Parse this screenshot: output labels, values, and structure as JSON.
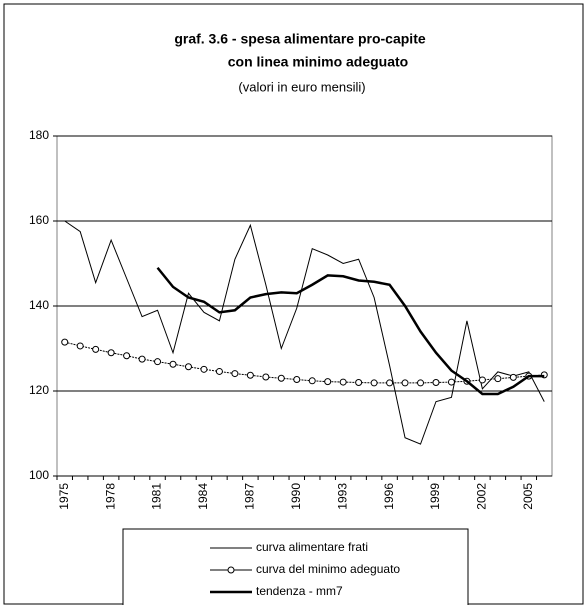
{
  "chart_data": {
    "type": "line",
    "title": [
      "graf. 3.6 - spesa alimentare pro-capite",
      "con linea minimo adeguato"
    ],
    "subtitle": "(valori in euro mensili)",
    "categories": [
      "1975",
      null,
      null,
      "1978",
      null,
      null,
      "1981",
      null,
      null,
      "1984",
      null,
      null,
      "1987",
      null,
      null,
      "1990",
      null,
      null,
      "1993",
      null,
      null,
      "1996",
      null,
      null,
      "1999",
      null,
      null,
      "2002",
      null,
      null,
      "2005",
      null
    ],
    "series": [
      {
        "name": "curva alimentare frati",
        "color": "#000000",
        "values": [
          160,
          157.5,
          145.5,
          155.5,
          146.5,
          137.5,
          139,
          129,
          143,
          138.5,
          136.5,
          151,
          159,
          145,
          130,
          139.5,
          153.5,
          152,
          150,
          151,
          142,
          126,
          109,
          107.5,
          117.5,
          118.5,
          136.5,
          120.5,
          124.5,
          123.5,
          124.5,
          117.5
        ]
      },
      {
        "name": "curva del minimo adeguato",
        "color": "#000000",
        "marker": "circle",
        "values": [
          131.5,
          130.6,
          129.8,
          129,
          128.3,
          127.5,
          126.9,
          126.3,
          125.7,
          125.1,
          124.6,
          124.1,
          123.7,
          123.3,
          123,
          122.7,
          122.4,
          122.2,
          122.1,
          122,
          121.9,
          121.9,
          121.9,
          121.9,
          122,
          122.1,
          122.3,
          122.6,
          122.9,
          123.2,
          123.5,
          123.8
        ]
      },
      {
        "name": "tendenza - mm7",
        "color": "#000000",
        "values": [
          null,
          null,
          null,
          null,
          null,
          null,
          149,
          144.5,
          142,
          141,
          138.5,
          139,
          142,
          142.8,
          143.2,
          143,
          145,
          147.2,
          147,
          146,
          145.7,
          145,
          140,
          134,
          129,
          124.8,
          122.3,
          119.3,
          119.3,
          121,
          123.5,
          123.5
        ]
      }
    ],
    "ylim": [
      100,
      180
    ],
    "yticks": [
      100,
      120,
      140,
      160,
      180
    ],
    "grid": true
  }
}
